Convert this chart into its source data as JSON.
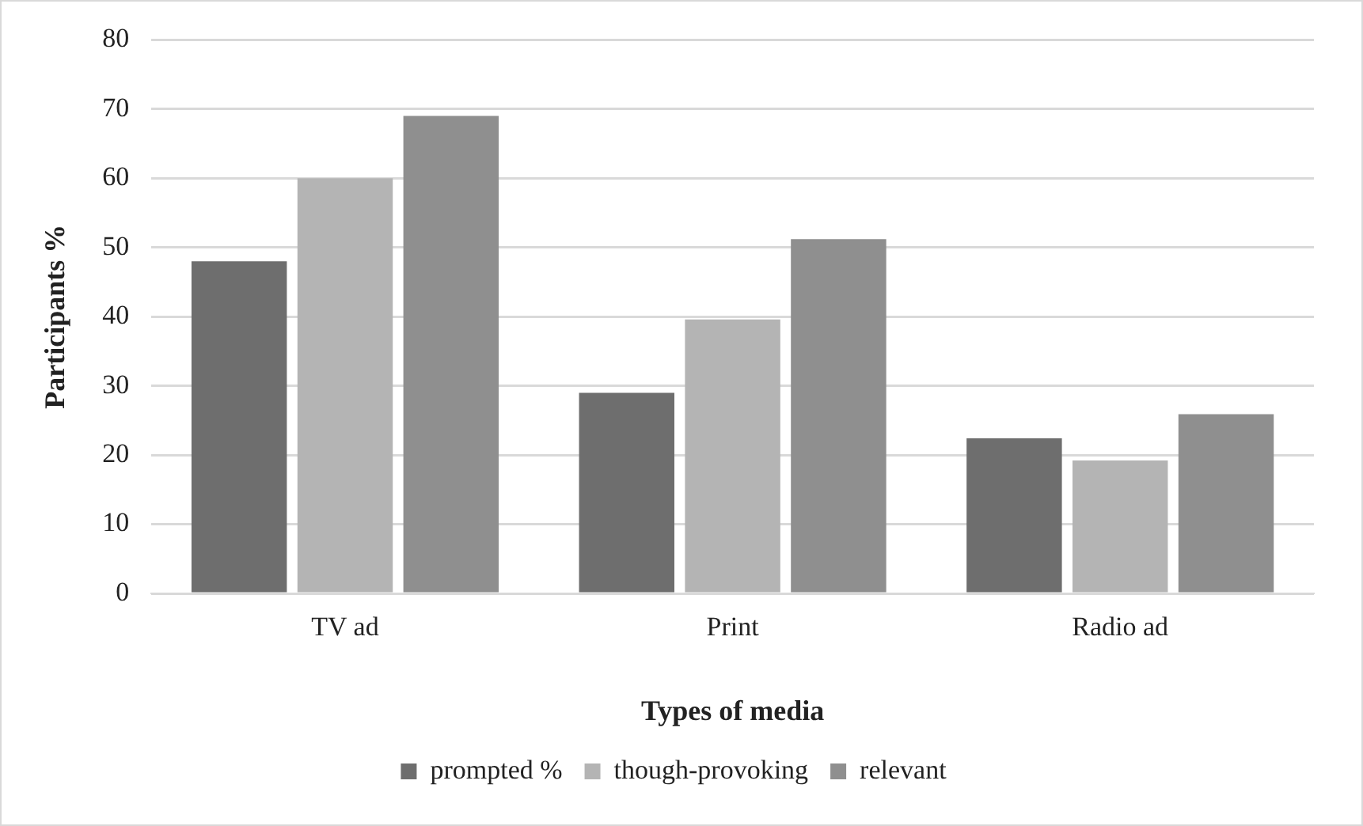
{
  "chart_data": {
    "type": "bar",
    "xlabel": "Types of media",
    "ylabel": "Participants %",
    "categories": [
      "TV ad",
      "Print",
      "Radio ad"
    ],
    "series": [
      {
        "name": "prompted %",
        "color": "#6e6e6e",
        "values": [
          48,
          29,
          22.4
        ]
      },
      {
        "name": "though-provoking",
        "color": "#b4b4b4",
        "values": [
          60,
          39.6,
          19.2
        ]
      },
      {
        "name": "relevant",
        "color": "#8f8f8f",
        "values": [
          69,
          51.2,
          25.9
        ]
      }
    ],
    "ylim": [
      0,
      80
    ],
    "yticks": [
      0,
      10,
      20,
      30,
      40,
      50,
      60,
      70,
      80
    ],
    "grid": "y",
    "legend": "bottom"
  }
}
